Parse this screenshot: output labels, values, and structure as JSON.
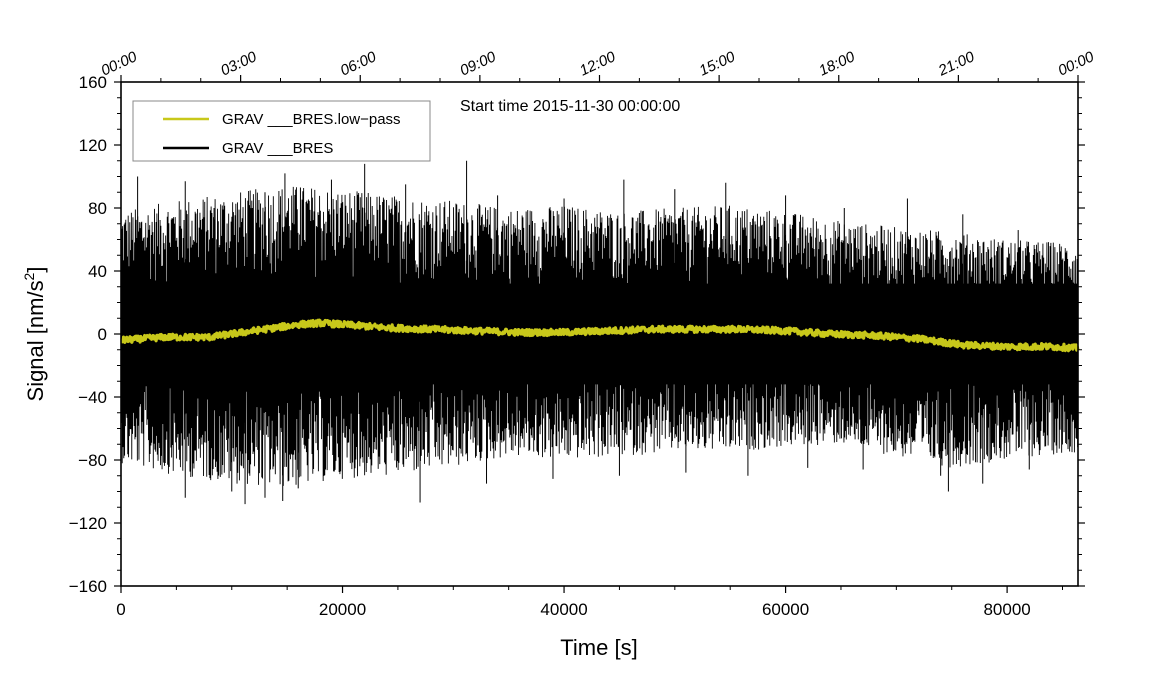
{
  "chart_data": {
    "type": "line",
    "title": "",
    "annotation": "Start time 2015-11-30 00:00:00",
    "xlabel": "Time [s]",
    "ylabel": "Signal [nm/s",
    "ylabel_sup": "2",
    "ylabel_end": "]",
    "xlim": [
      0,
      86400
    ],
    "ylim": [
      -160,
      160
    ],
    "x_ticks": [
      0,
      20000,
      40000,
      60000,
      80000
    ],
    "x_tick_labels": [
      "0",
      "20000",
      "40000",
      "60000",
      "80000"
    ],
    "y_ticks": [
      160,
      120,
      80,
      40,
      0,
      -40,
      -80,
      -120,
      -160
    ],
    "y_tick_labels": [
      "160",
      "120",
      "80",
      "40",
      "0",
      "−40",
      "−80",
      "−120",
      "−160"
    ],
    "top_axis": {
      "ticks": [
        0,
        10800,
        21600,
        32400,
        43200,
        54000,
        64800,
        75600,
        86400
      ],
      "labels": [
        "00:00",
        "03:00",
        "06:00",
        "09:00",
        "12:00",
        "15:00",
        "18:00",
        "21:00",
        "00:00"
      ]
    },
    "legend": [
      {
        "label": "GRAV ___BRES.low−pass",
        "color": "#c8c81a"
      },
      {
        "label": "GRAV ___BRES",
        "color": "#000000"
      }
    ],
    "legend_position": "top-left",
    "series": [
      {
        "name": "GRAV ___BRES",
        "color": "#000000",
        "envelope_x": [
          0,
          5000,
          10000,
          15000,
          20000,
          25000,
          30000,
          35000,
          40000,
          45000,
          50000,
          55000,
          60000,
          65000,
          70000,
          75000,
          80000,
          86400
        ],
        "envelope_upper": [
          78,
          85,
          90,
          95,
          92,
          88,
          85,
          80,
          82,
          78,
          80,
          82,
          78,
          72,
          68,
          65,
          60,
          58
        ],
        "envelope_lower": [
          -82,
          -90,
          -95,
          -98,
          -92,
          -90,
          -85,
          -78,
          -80,
          -78,
          -75,
          -75,
          -72,
          -70,
          -78,
          -85,
          -80,
          -75
        ],
        "peaks": [
          {
            "x": 1500,
            "y": 100
          },
          {
            "x": 5800,
            "y": 97
          },
          {
            "x": 8400,
            "y": 80
          },
          {
            "x": 13000,
            "y": 90
          },
          {
            "x": 14800,
            "y": 102
          },
          {
            "x": 16200,
            "y": 93
          },
          {
            "x": 19000,
            "y": 98
          },
          {
            "x": 22000,
            "y": 108
          },
          {
            "x": 25700,
            "y": 95
          },
          {
            "x": 31200,
            "y": 110
          },
          {
            "x": 34000,
            "y": 88
          },
          {
            "x": 40000,
            "y": 86
          },
          {
            "x": 45400,
            "y": 98
          },
          {
            "x": 50000,
            "y": 92
          },
          {
            "x": 54600,
            "y": 96
          },
          {
            "x": 60000,
            "y": 88
          },
          {
            "x": 65300,
            "y": 80
          },
          {
            "x": 71000,
            "y": 86
          },
          {
            "x": 76000,
            "y": 76
          },
          {
            "x": 81000,
            "y": 66
          },
          {
            "x": 5800,
            "y": -104
          },
          {
            "x": 10000,
            "y": -100
          },
          {
            "x": 11200,
            "y": -108
          },
          {
            "x": 13000,
            "y": -104
          },
          {
            "x": 14600,
            "y": -106
          },
          {
            "x": 16000,
            "y": -98
          },
          {
            "x": 27000,
            "y": -107
          },
          {
            "x": 33000,
            "y": -95
          },
          {
            "x": 39000,
            "y": -92
          },
          {
            "x": 45000,
            "y": -90
          },
          {
            "x": 51000,
            "y": -88
          },
          {
            "x": 56600,
            "y": -90
          },
          {
            "x": 62000,
            "y": -85
          },
          {
            "x": 67000,
            "y": -86
          },
          {
            "x": 74000,
            "y": -90
          },
          {
            "x": 74700,
            "y": -100
          },
          {
            "x": 77800,
            "y": -95
          },
          {
            "x": 82000,
            "y": -86
          }
        ]
      },
      {
        "name": "GRAV ___BRES.low-pass",
        "color": "#c8c81a",
        "x": [
          0,
          4000,
          8000,
          12000,
          16000,
          18000,
          20000,
          24000,
          28000,
          32000,
          36000,
          40000,
          44000,
          48000,
          52000,
          56000,
          60000,
          64000,
          68000,
          72000,
          76000,
          80000,
          84000,
          86400
        ],
        "y": [
          -4,
          -2,
          -2,
          2,
          6,
          7,
          6,
          4,
          3,
          2,
          1,
          1,
          2,
          3,
          3,
          3,
          2,
          0,
          -1,
          -3,
          -7,
          -8,
          -8,
          -9
        ]
      }
    ]
  }
}
